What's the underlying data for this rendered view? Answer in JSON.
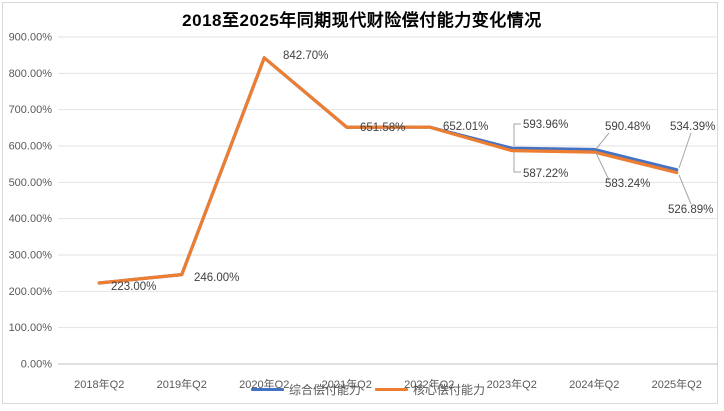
{
  "chart_data": {
    "type": "line",
    "title": "2018至2025年同期现代财险偿付能力变化情况",
    "categories": [
      "2018年Q2",
      "2019年Q2",
      "2020年Q2",
      "2021年Q2",
      "2022年Q2",
      "2023年Q2",
      "2024年Q2",
      "2025年Q2"
    ],
    "series": [
      {
        "name": "综合偿付能力",
        "color": "#4472C4",
        "values": [
          223.0,
          246.0,
          842.7,
          651.58,
          652.01,
          593.96,
          590.48,
          534.39
        ],
        "point_labels": [
          null,
          null,
          null,
          null,
          null,
          "593.96%",
          "590.48%",
          "534.39%"
        ]
      },
      {
        "name": "核心偿付能力",
        "color": "#ED7D31",
        "values": [
          223.0,
          246.0,
          842.7,
          651.58,
          652.01,
          587.22,
          583.24,
          526.89
        ],
        "point_labels": [
          "223.00%",
          "246.00%",
          "842.70%",
          "651.58%",
          "652.01%",
          "587.22%",
          "583.24%",
          "526.89%"
        ]
      }
    ],
    "ylim": [
      0,
      900
    ],
    "ytick_labels": [
      "0.00%",
      "100.00%",
      "200.00%",
      "300.00%",
      "400.00%",
      "500.00%",
      "600.00%",
      "700.00%",
      "800.00%",
      "900.00%"
    ],
    "grid": true,
    "legend_position": "bottom"
  }
}
